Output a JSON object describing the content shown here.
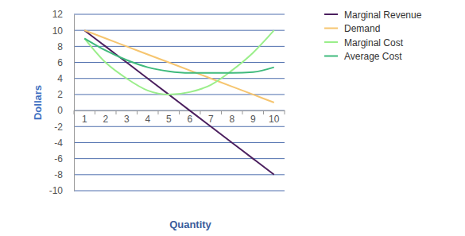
{
  "chart_data": {
    "type": "line",
    "x_label": "Quantity",
    "y_label": "Dollars",
    "categories": [
      "1",
      "2",
      "3",
      "4",
      "5",
      "6",
      "7",
      "8",
      "9",
      "10"
    ],
    "series": [
      {
        "name": "Marginal Revenue",
        "color": "#4b1f5e",
        "values": [
          10,
          8,
          6,
          4,
          2,
          0,
          -2,
          -4,
          -6,
          -8
        ]
      },
      {
        "name": "Demand",
        "color": "#f6c56f",
        "values": [
          10,
          9,
          8,
          7,
          6,
          5,
          4,
          3,
          2,
          1
        ]
      },
      {
        "name": "Marginal Cost",
        "color": "#9aee8a",
        "values": [
          9,
          6,
          4,
          2.5,
          2,
          2.3,
          3.2,
          5,
          7.2,
          10
        ]
      },
      {
        "name": "Average Cost",
        "color": "#3fba7c",
        "values": [
          9,
          7.5,
          6.3,
          5.4,
          4.9,
          4.7,
          4.7,
          4.7,
          4.8,
          5.4
        ]
      }
    ],
    "ylim": [
      -10,
      12
    ],
    "yticks": [
      -10,
      -8,
      -6,
      -4,
      -2,
      0,
      2,
      4,
      6,
      8,
      10,
      12
    ],
    "grid": true,
    "legend": "right"
  }
}
